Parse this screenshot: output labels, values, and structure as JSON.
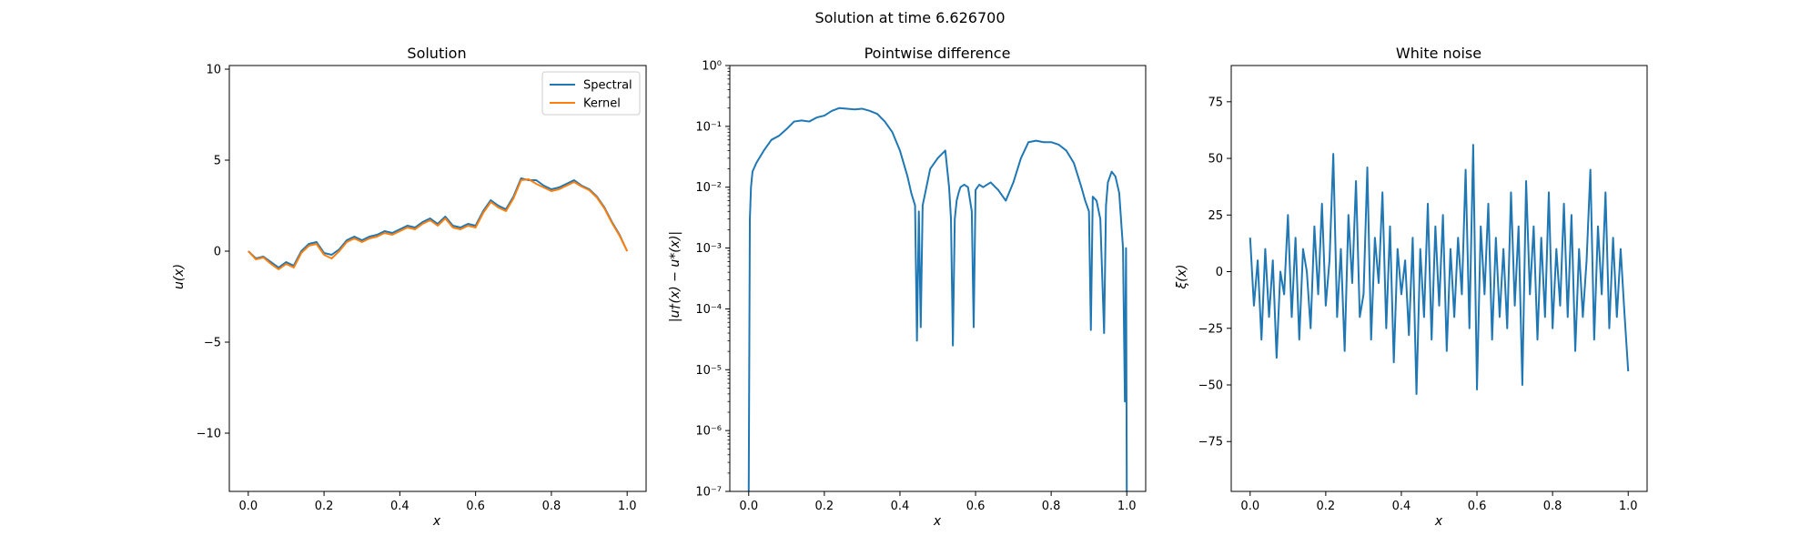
{
  "figure": {
    "suptitle": "Solution at time 6.626700"
  },
  "colors": {
    "spectral": "#1f77b4",
    "kernel": "#ff7f0e",
    "axis": "#000000",
    "legend_border": "#cccccc"
  },
  "chart_data": [
    {
      "type": "line",
      "title": "Solution",
      "xlabel": "x",
      "ylabel": "u(x)",
      "xlim": [
        -0.05,
        1.05
      ],
      "ylim": [
        -13.2,
        10.2
      ],
      "xticks": [
        0.0,
        0.2,
        0.4,
        0.6,
        0.8,
        1.0
      ],
      "xtick_labels": [
        "0.0",
        "0.2",
        "0.4",
        "0.6",
        "0.8",
        "1.0"
      ],
      "yticks": [
        -10,
        -5,
        0,
        5,
        10
      ],
      "ytick_labels": [
        "−10",
        "−5",
        "0",
        "5",
        "10"
      ],
      "legend": {
        "position": "upper-right",
        "entries": [
          "Spectral",
          "Kernel"
        ]
      },
      "series": [
        {
          "name": "Spectral",
          "x": [
            0.0,
            0.02,
            0.04,
            0.06,
            0.08,
            0.09,
            0.1,
            0.12,
            0.14,
            0.16,
            0.18,
            0.2,
            0.22,
            0.24,
            0.26,
            0.28,
            0.3,
            0.32,
            0.34,
            0.36,
            0.38,
            0.4,
            0.42,
            0.44,
            0.46,
            0.48,
            0.5,
            0.52,
            0.54,
            0.56,
            0.58,
            0.6,
            0.62,
            0.64,
            0.66,
            0.68,
            0.7,
            0.72,
            0.74,
            0.76,
            0.78,
            0.8,
            0.82,
            0.84,
            0.86,
            0.88,
            0.9,
            0.92,
            0.94,
            0.96,
            0.98,
            1.0
          ],
          "y": [
            0.0,
            -0.4,
            -0.3,
            -0.6,
            -0.9,
            -0.75,
            -0.6,
            -0.8,
            0.0,
            0.4,
            0.5,
            -0.1,
            -0.2,
            0.1,
            0.6,
            0.8,
            0.6,
            0.8,
            0.9,
            1.1,
            1.0,
            1.2,
            1.4,
            1.3,
            1.6,
            1.8,
            1.5,
            1.9,
            1.4,
            1.3,
            1.5,
            1.4,
            2.2,
            2.8,
            2.5,
            2.3,
            3.0,
            4.0,
            3.9,
            3.9,
            3.6,
            3.4,
            3.5,
            3.7,
            3.9,
            3.6,
            3.4,
            3.0,
            2.4,
            1.6,
            0.9,
            0.0
          ]
        },
        {
          "name": "Kernel",
          "x": [
            0.0,
            0.02,
            0.04,
            0.06,
            0.08,
            0.09,
            0.1,
            0.12,
            0.14,
            0.16,
            0.18,
            0.2,
            0.22,
            0.24,
            0.26,
            0.28,
            0.3,
            0.32,
            0.34,
            0.36,
            0.38,
            0.4,
            0.42,
            0.44,
            0.46,
            0.48,
            0.5,
            0.52,
            0.54,
            0.56,
            0.58,
            0.6,
            0.62,
            0.64,
            0.66,
            0.68,
            0.7,
            0.72,
            0.74,
            0.76,
            0.78,
            0.8,
            0.82,
            0.84,
            0.86,
            0.88,
            0.9,
            0.92,
            0.94,
            0.96,
            0.98,
            1.0
          ],
          "y": [
            0.0,
            -0.45,
            -0.35,
            -0.7,
            -1.0,
            -0.85,
            -0.7,
            -0.9,
            -0.1,
            0.3,
            0.4,
            -0.2,
            -0.4,
            0.0,
            0.5,
            0.7,
            0.5,
            0.7,
            0.8,
            1.0,
            0.9,
            1.1,
            1.3,
            1.2,
            1.5,
            1.7,
            1.4,
            1.8,
            1.3,
            1.2,
            1.4,
            1.3,
            2.1,
            2.7,
            2.4,
            2.2,
            2.9,
            3.9,
            3.95,
            3.7,
            3.5,
            3.3,
            3.4,
            3.6,
            3.8,
            3.55,
            3.35,
            2.95,
            2.35,
            1.55,
            0.85,
            0.0
          ]
        }
      ]
    },
    {
      "type": "line",
      "title": "Pointwise difference",
      "xlabel": "x",
      "ylabel": "|u†(x) − u*(x)|",
      "yscale": "log",
      "xlim": [
        -0.05,
        1.05
      ],
      "ylim": [
        1e-07,
        1
      ],
      "xticks": [
        0.0,
        0.2,
        0.4,
        0.6,
        0.8,
        1.0
      ],
      "xtick_labels": [
        "0.0",
        "0.2",
        "0.4",
        "0.6",
        "0.8",
        "1.0"
      ],
      "yticks": [
        1e-07,
        1e-06,
        1e-05,
        0.0001,
        0.001,
        0.01,
        0.1,
        1
      ],
      "ytick_labels": [
        "10⁻⁷",
        "10⁻⁶",
        "10⁻⁵",
        "10⁻⁴",
        "10⁻³",
        "10⁻²",
        "10⁻¹",
        "10⁰"
      ],
      "series": [
        {
          "name": "",
          "x": [
            0.0,
            0.003,
            0.006,
            0.01,
            0.02,
            0.04,
            0.06,
            0.08,
            0.1,
            0.12,
            0.14,
            0.16,
            0.18,
            0.2,
            0.22,
            0.24,
            0.26,
            0.28,
            0.3,
            0.32,
            0.34,
            0.36,
            0.38,
            0.4,
            0.42,
            0.43,
            0.44,
            0.445,
            0.45,
            0.455,
            0.46,
            0.47,
            0.48,
            0.5,
            0.52,
            0.53,
            0.535,
            0.54,
            0.545,
            0.55,
            0.555,
            0.56,
            0.57,
            0.58,
            0.59,
            0.595,
            0.6,
            0.605,
            0.61,
            0.62,
            0.64,
            0.66,
            0.68,
            0.7,
            0.72,
            0.74,
            0.76,
            0.78,
            0.8,
            0.82,
            0.84,
            0.86,
            0.88,
            0.89,
            0.9,
            0.905,
            0.91,
            0.92,
            0.93,
            0.94,
            0.945,
            0.95,
            0.96,
            0.97,
            0.98,
            0.99,
            0.995,
            0.998,
            1.0
          ],
          "y": [
            1e-07,
            0.003,
            0.01,
            0.018,
            0.025,
            0.04,
            0.06,
            0.07,
            0.09,
            0.12,
            0.125,
            0.12,
            0.14,
            0.15,
            0.18,
            0.2,
            0.195,
            0.19,
            0.195,
            0.18,
            0.16,
            0.12,
            0.08,
            0.04,
            0.015,
            0.008,
            0.005,
            3e-05,
            0.004,
            5e-05,
            0.005,
            0.01,
            0.02,
            0.03,
            0.04,
            0.01,
            0.003,
            2.5e-05,
            0.003,
            0.006,
            0.008,
            0.01,
            0.011,
            0.01,
            0.004,
            5e-05,
            0.009,
            0.01,
            0.011,
            0.01,
            0.012,
            0.009,
            0.006,
            0.012,
            0.03,
            0.055,
            0.058,
            0.055,
            0.055,
            0.05,
            0.04,
            0.025,
            0.01,
            0.006,
            0.004,
            4.5e-05,
            0.007,
            0.006,
            0.003,
            4e-05,
            0.005,
            0.012,
            0.018,
            0.015,
            0.008,
            0.001,
            3e-06,
            0.001,
            1e-07
          ]
        }
      ]
    },
    {
      "type": "line",
      "title": "White noise",
      "xlabel": "x",
      "ylabel": "ξ(x)",
      "xlim": [
        -0.05,
        1.05
      ],
      "ylim": [
        -97,
        91
      ],
      "xticks": [
        0.0,
        0.2,
        0.4,
        0.6,
        0.8,
        1.0
      ],
      "xtick_labels": [
        "0.0",
        "0.2",
        "0.4",
        "0.6",
        "0.8",
        "1.0"
      ],
      "yticks": [
        -75,
        -50,
        -25,
        0,
        25,
        50,
        75
      ],
      "ytick_labels": [
        "−75",
        "−50",
        "−25",
        "0",
        "25",
        "50",
        "75"
      ],
      "series": [
        {
          "name": "",
          "x": [
            0.0,
            0.01,
            0.02,
            0.03,
            0.04,
            0.05,
            0.06,
            0.07,
            0.08,
            0.09,
            0.1,
            0.11,
            0.12,
            0.13,
            0.14,
            0.15,
            0.16,
            0.17,
            0.18,
            0.19,
            0.2,
            0.21,
            0.22,
            0.23,
            0.24,
            0.25,
            0.26,
            0.27,
            0.28,
            0.29,
            0.3,
            0.31,
            0.32,
            0.33,
            0.34,
            0.35,
            0.36,
            0.37,
            0.38,
            0.39,
            0.4,
            0.41,
            0.42,
            0.43,
            0.44,
            0.45,
            0.46,
            0.47,
            0.48,
            0.49,
            0.5,
            0.51,
            0.52,
            0.53,
            0.54,
            0.55,
            0.56,
            0.57,
            0.58,
            0.59,
            0.6,
            0.61,
            0.62,
            0.63,
            0.64,
            0.65,
            0.66,
            0.67,
            0.68,
            0.69,
            0.7,
            0.71,
            0.72,
            0.73,
            0.74,
            0.75,
            0.76,
            0.77,
            0.78,
            0.79,
            0.8,
            0.81,
            0.82,
            0.83,
            0.84,
            0.85,
            0.86,
            0.87,
            0.88,
            0.89,
            0.9,
            0.91,
            0.92,
            0.93,
            0.94,
            0.95,
            0.96,
            0.97,
            0.98,
            0.99,
            1.0
          ],
          "y": [
            15,
            -15,
            5,
            -30,
            10,
            -20,
            5,
            -38,
            0,
            -10,
            25,
            -20,
            15,
            -30,
            10,
            0,
            -25,
            20,
            -10,
            30,
            -15,
            5,
            52,
            -20,
            10,
            -35,
            25,
            -5,
            40,
            -20,
            -10,
            46,
            -30,
            15,
            -5,
            35,
            -25,
            20,
            -40,
            10,
            -10,
            5,
            -28,
            15,
            -54,
            10,
            -20,
            30,
            -30,
            20,
            -15,
            25,
            -35,
            10,
            -20,
            15,
            -10,
            45,
            -25,
            56,
            -52,
            20,
            -10,
            30,
            -30,
            15,
            -20,
            10,
            -25,
            35,
            -15,
            20,
            -50,
            40,
            -10,
            20,
            -30,
            15,
            -20,
            35,
            -25,
            10,
            -15,
            30,
            -20,
            25,
            -35,
            10,
            -20,
            5,
            45,
            -30,
            20,
            -10,
            35,
            -25,
            15,
            -20,
            10,
            -18,
            -44
          ]
        }
      ]
    }
  ]
}
